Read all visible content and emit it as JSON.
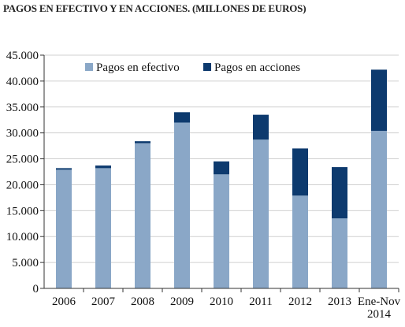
{
  "chart_data": {
    "type": "bar",
    "stacked": true,
    "title": "PAGOS EN EFECTIVO Y EN ACCIONES. (MILLONES DE EUROS)",
    "categories": [
      [
        "2006"
      ],
      [
        "2007"
      ],
      [
        "2008"
      ],
      [
        "2009"
      ],
      [
        "2010"
      ],
      [
        "2011"
      ],
      [
        "2012"
      ],
      [
        "2013"
      ],
      [
        "Ene-Nov",
        "2014"
      ]
    ],
    "series": [
      {
        "name": "Pagos en efectivo",
        "color": "#8aa7c7",
        "values": [
          22900,
          23200,
          28000,
          32000,
          22000,
          28700,
          17900,
          13500,
          30400
        ]
      },
      {
        "name": "Pagos en acciones",
        "color": "#0d3a6e",
        "values": [
          300,
          500,
          400,
          2000,
          2500,
          4800,
          9100,
          9900,
          11800
        ]
      }
    ],
    "ylim": [
      0,
      45000
    ],
    "yticks": [
      "0",
      "5.000",
      "10.000",
      "15.000",
      "20.000",
      "25.000",
      "30.000",
      "35.000",
      "40.000",
      "45.000"
    ],
    "ytick_values": [
      0,
      5000,
      10000,
      15000,
      20000,
      25000,
      30000,
      35000,
      40000,
      45000
    ],
    "grid": true,
    "legend": "top-center"
  }
}
